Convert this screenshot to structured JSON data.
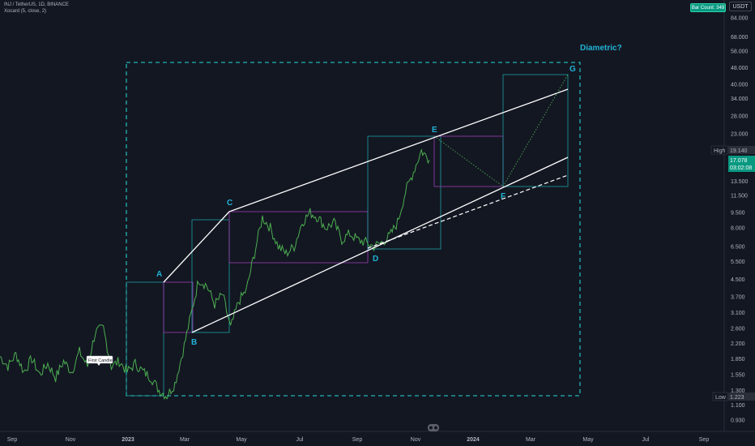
{
  "legend": {
    "symbol_line": "INJ / TetherUS, 1D, BINANCE",
    "indicator_line": "Xocard (5, close, 2)"
  },
  "header": {
    "bar_count": "Bar Count: 349",
    "currency": "USDT"
  },
  "price_scale": [
    "84.000",
    "68.000",
    "58.000",
    "48.000",
    "40.000",
    "34.000",
    "28.000",
    "23.000",
    "19.140",
    "13.500",
    "11.500",
    "9.500",
    "8.000",
    "6.500",
    "5.500",
    "4.500",
    "3.700",
    "3.100",
    "2.600",
    "2.200",
    "1.850",
    "1.550",
    "1.300",
    "1.100",
    "0.930"
  ],
  "price_badges": {
    "high_tag": "High",
    "high_value": "19.140",
    "last_price": "17.078",
    "countdown": "03:02:08",
    "low_tag": "Low",
    "low_value": "1.223"
  },
  "time_axis": [
    "Sep",
    "Nov",
    "2023",
    "Mar",
    "May",
    "Jul",
    "Sep",
    "Nov",
    "2024",
    "Mar",
    "May",
    "Jul",
    "Sep"
  ],
  "annotations": {
    "title": "Diametric?",
    "first_candle": "First Candle",
    "wave_points": [
      "A",
      "B",
      "C",
      "D",
      "E",
      "F",
      "G"
    ]
  },
  "colors": {
    "background": "#131722",
    "price_line": "#4caf50",
    "wave_label": "#21b3d6",
    "teal_box": "#1f9fa3",
    "purple_box": "#9c3db3"
  },
  "chart_data": {
    "type": "line",
    "title": "INJ / TetherUS, 1D, BINANCE",
    "y_scale": "log",
    "ylim": [
      0.93,
      84
    ],
    "x_ticks": [
      "Sep",
      "Nov",
      "2023",
      "Mar",
      "May",
      "Jul",
      "Sep",
      "Nov",
      "2024",
      "Mar",
      "May",
      "Jul",
      "Sep"
    ],
    "series": [
      {
        "values": [
          1.9,
          1.7,
          1.95,
          1.6,
          1.85,
          1.55,
          1.75,
          1.5,
          1.8,
          1.6,
          2.0,
          1.7,
          2.5,
          2.6,
          1.7,
          1.8,
          1.6,
          1.75,
          1.6,
          1.5,
          1.3,
          1.22,
          1.4,
          2.0,
          3.0,
          4.5,
          4.2,
          3.4,
          3.8,
          2.6,
          3.5,
          4.0,
          6.0,
          9.0,
          8.0,
          6.5,
          6.0,
          6.5,
          8.5,
          9.5,
          9.0,
          8.0,
          8.5,
          7.0,
          7.5,
          7.0,
          6.8,
          6.5,
          6.8,
          7.3,
          8.5,
          12.0,
          15.0,
          19.0,
          17.1
        ]
      }
    ],
    "wave_points": [
      {
        "label": "A",
        "value": 4.3
      },
      {
        "label": "B",
        "value": 2.5
      },
      {
        "label": "C",
        "value": 9.6
      },
      {
        "label": "D",
        "value": 6.2
      },
      {
        "label": "E",
        "value": 22.5
      },
      {
        "label": "F",
        "value": 12.2
      },
      {
        "label": "G",
        "value": 44.0
      }
    ]
  }
}
